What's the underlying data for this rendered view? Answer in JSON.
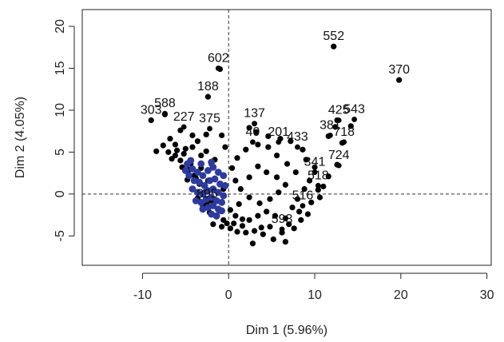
{
  "chart_data": {
    "type": "scatter",
    "title": "",
    "xlabel": "Dim 1 (5.96%)",
    "ylabel": "Dim 2 (4.05%)",
    "xlim": [
      -17,
      30.5
    ],
    "ylim": [
      -8.5,
      22
    ],
    "x_ticks": [
      -10,
      0,
      10,
      20,
      30
    ],
    "y_ticks": [
      -5,
      0,
      5,
      10,
      15,
      20
    ],
    "grid": false,
    "reference_lines": {
      "x": 0,
      "y": 0,
      "style": "dashed"
    },
    "series": [
      {
        "color": "#000000",
        "labeled_points": [
          {
            "label": "552",
            "x": 12.2,
            "y": 17.6
          },
          {
            "label": "370",
            "x": 19.8,
            "y": 13.6
          },
          {
            "label": "602",
            "x": -1.2,
            "y": 15.0
          },
          {
            "label": "188",
            "x": -2.4,
            "y": 11.6
          },
          {
            "label": "588",
            "x": -7.4,
            "y": 9.6
          },
          {
            "label": "303",
            "x": -9.0,
            "y": 8.8
          },
          {
            "label": "227",
            "x": -5.2,
            "y": 8.0
          },
          {
            "label": "375",
            "x": -2.2,
            "y": 7.8
          },
          {
            "label": "137",
            "x": 3.0,
            "y": 8.4
          },
          {
            "label": "201",
            "x": 5.8,
            "y": 6.2
          },
          {
            "label": "40",
            "x": 2.8,
            "y": 6.2
          },
          {
            "label": "433",
            "x": 8.0,
            "y": 5.6
          },
          {
            "label": "425",
            "x": 12.8,
            "y": 8.8
          },
          {
            "label": "543",
            "x": 14.6,
            "y": 8.9
          },
          {
            "label": "381",
            "x": 11.8,
            "y": 7.0
          },
          {
            "label": "718",
            "x": 13.4,
            "y": 6.2
          },
          {
            "label": "724",
            "x": 12.8,
            "y": 3.4
          },
          {
            "label": "341",
            "x": 10.0,
            "y": 2.6
          },
          {
            "label": "518",
            "x": 10.4,
            "y": 1.0
          },
          {
            "label": "516",
            "x": 8.6,
            "y": -1.4
          },
          {
            "label": "593",
            "x": 6.2,
            "y": -4.2
          },
          {
            "label": "895",
            "x": -2.5,
            "y": -1.2
          }
        ],
        "points": [
          [
            2.8,
            -5.9
          ],
          [
            5.2,
            -5.4
          ],
          [
            6.6,
            -5.7
          ],
          [
            4.0,
            -4.8
          ],
          [
            3.0,
            -4.4
          ],
          [
            1.0,
            -4.5
          ],
          [
            0.2,
            -4.1
          ],
          [
            -0.8,
            -3.9
          ],
          [
            -1.8,
            -3.6
          ],
          [
            7.6,
            -4.1
          ],
          [
            8.4,
            -3.1
          ],
          [
            9.2,
            -2.4
          ],
          [
            10.6,
            -0.4
          ],
          [
            11.0,
            0.9
          ],
          [
            11.6,
            2.1
          ],
          [
            10.0,
            3.2
          ],
          [
            9.0,
            4.1
          ],
          [
            8.6,
            5.3
          ],
          [
            7.2,
            6.3
          ],
          [
            6.0,
            6.6
          ],
          [
            4.6,
            6.9
          ],
          [
            3.2,
            7.4
          ],
          [
            2.4,
            7.9
          ],
          [
            -0.8,
            7.0
          ],
          [
            -2.6,
            7.1
          ],
          [
            -4.2,
            7.0
          ],
          [
            -5.6,
            7.6
          ],
          [
            -6.8,
            6.6
          ],
          [
            -7.6,
            5.8
          ],
          [
            -8.4,
            5.1
          ],
          [
            12.6,
            8.8
          ],
          [
            12.4,
            8.0
          ],
          [
            14.2,
            8.1
          ],
          [
            11.6,
            6.9
          ],
          [
            13.2,
            6.1
          ],
          [
            12.6,
            3.5
          ],
          [
            -1.0,
            14.9
          ],
          [
            -2.4,
            11.6
          ],
          [
            12.2,
            17.6
          ],
          [
            19.8,
            13.6
          ],
          [
            -9.0,
            8.8
          ],
          [
            -7.4,
            9.5
          ],
          [
            -6.2,
            4.6
          ],
          [
            -5.4,
            3.2
          ],
          [
            -4.8,
            1.7
          ],
          [
            -4.2,
            0.6
          ],
          [
            -3.6,
            -0.5
          ],
          [
            -3.0,
            -1.4
          ],
          [
            -2.2,
            -2.2
          ],
          [
            -1.4,
            -2.7
          ],
          [
            -0.6,
            -3.1
          ],
          [
            0.6,
            -3.5
          ],
          [
            1.6,
            -3.8
          ],
          [
            2.4,
            -3.1
          ],
          [
            3.4,
            -2.6
          ],
          [
            4.4,
            -2.1
          ],
          [
            5.4,
            -2.6
          ],
          [
            6.6,
            -2.9
          ],
          [
            7.4,
            -1.6
          ],
          [
            8.0,
            -0.6
          ],
          [
            8.8,
            0.6
          ],
          [
            9.4,
            1.6
          ],
          [
            7.8,
            2.6
          ],
          [
            6.8,
            3.6
          ],
          [
            5.6,
            4.6
          ],
          [
            4.6,
            5.6
          ],
          [
            3.4,
            5.9
          ],
          [
            2.0,
            5.3
          ],
          [
            1.0,
            4.3
          ],
          [
            0.4,
            3.1
          ],
          [
            0.8,
            1.6
          ],
          [
            1.4,
            0.6
          ],
          [
            2.4,
            -0.4
          ],
          [
            3.6,
            -1.1
          ],
          [
            4.8,
            -0.6
          ],
          [
            5.8,
            0.2
          ],
          [
            6.6,
            1.1
          ],
          [
            5.6,
            2.0
          ],
          [
            4.4,
            2.6
          ],
          [
            3.4,
            3.3
          ],
          [
            2.4,
            2.0
          ],
          [
            1.2,
            -1.2
          ],
          [
            0.2,
            -1.9
          ],
          [
            -0.6,
            0.6
          ],
          [
            -1.2,
            2.6
          ],
          [
            -2.0,
            3.6
          ],
          [
            -3.2,
            4.6
          ],
          [
            -4.2,
            5.6
          ],
          [
            -3.6,
            6.3
          ],
          [
            -2.6,
            5.1
          ],
          [
            -1.6,
            4.1
          ],
          [
            -0.4,
            5.6
          ],
          [
            -5.0,
            5.4
          ],
          [
            -6.2,
            5.9
          ],
          [
            -7.0,
            5.0
          ],
          [
            -5.6,
            4.0
          ],
          [
            -4.6,
            2.9
          ],
          [
            -3.8,
            1.9
          ],
          [
            -3.2,
            3.1
          ],
          [
            -2.4,
            1.6
          ],
          [
            3.8,
            -4.0
          ],
          [
            2.0,
            -4.6
          ],
          [
            4.8,
            -3.9
          ],
          [
            6.2,
            -4.6
          ],
          [
            7.0,
            -3.6
          ],
          [
            8.2,
            -2.1
          ],
          [
            9.6,
            -1.0
          ],
          [
            10.4,
            0.5
          ],
          [
            1.6,
            -3.0
          ],
          [
            0.8,
            -2.6
          ],
          [
            -0.2,
            -3.5
          ],
          [
            -1.0,
            -2.0
          ],
          [
            -2.0,
            -0.8
          ],
          [
            -2.8,
            0.2
          ],
          [
            -3.4,
            1.2
          ],
          [
            -4.0,
            2.2
          ],
          [
            -4.4,
            3.6
          ],
          [
            -5.2,
            4.8
          ],
          [
            -6.0,
            5.2
          ],
          [
            -6.6,
            4.2
          ]
        ]
      },
      {
        "color": "#2d3a9e",
        "points": [
          [
            -4.8,
            3.6
          ],
          [
            -4.2,
            3.0
          ],
          [
            -3.6,
            2.6
          ],
          [
            -3.0,
            2.2
          ],
          [
            -2.4,
            2.8
          ],
          [
            -1.8,
            3.2
          ],
          [
            -1.2,
            2.6
          ],
          [
            -0.6,
            2.2
          ],
          [
            -4.6,
            2.2
          ],
          [
            -4.0,
            1.6
          ],
          [
            -3.4,
            1.4
          ],
          [
            -2.8,
            1.0
          ],
          [
            -2.2,
            1.6
          ],
          [
            -1.6,
            1.8
          ],
          [
            -1.0,
            1.2
          ],
          [
            -0.4,
            1.0
          ],
          [
            -4.2,
            0.6
          ],
          [
            -3.6,
            0.2
          ],
          [
            -3.0,
            0.0
          ],
          [
            -2.4,
            0.4
          ],
          [
            -1.8,
            0.6
          ],
          [
            -1.2,
            0.2
          ],
          [
            -0.6,
            -0.2
          ],
          [
            -3.8,
            -0.8
          ],
          [
            -3.2,
            -1.0
          ],
          [
            -2.6,
            -0.6
          ],
          [
            -2.0,
            -0.4
          ],
          [
            -1.4,
            -0.8
          ],
          [
            -0.8,
            -1.0
          ],
          [
            -3.0,
            -1.8
          ],
          [
            -2.4,
            -1.6
          ],
          [
            -1.8,
            -1.4
          ],
          [
            -1.2,
            -1.8
          ],
          [
            -2.0,
            -2.4
          ],
          [
            -1.4,
            -2.6
          ],
          [
            -0.8,
            -2.0
          ],
          [
            -5.0,
            2.8
          ],
          [
            -4.4,
            4.0
          ],
          [
            -3.2,
            3.6
          ],
          [
            -2.0,
            3.8
          ]
        ]
      }
    ]
  }
}
